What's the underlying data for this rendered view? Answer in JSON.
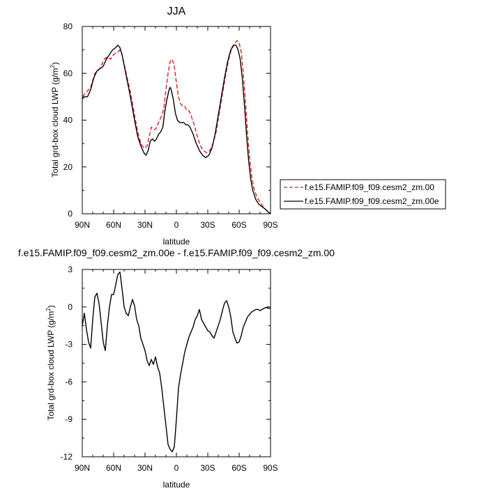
{
  "chart_data": [
    {
      "type": "line",
      "title": "JJA",
      "xlabel": "latitude",
      "ylabel": "Total grd-box cloud LWP (g/m",
      "ylabel_sup": "2",
      "ylabel_end": ")",
      "xlim": [
        90,
        -90
      ],
      "ylim": [
        0,
        80
      ],
      "xticks": [
        90,
        60,
        30,
        0,
        -30,
        -60,
        -90
      ],
      "xtick_labels": [
        "90N",
        "60N",
        "30N",
        "0",
        "30S",
        "60S",
        "90S"
      ],
      "yticks": [
        0,
        20,
        40,
        60,
        80
      ],
      "ytick_labels": [
        "0",
        "20",
        "40",
        "60",
        "80"
      ],
      "legend_position": "right",
      "series": [
        {
          "name": "f.e15.FAMIP.f09_f09.cesm2_zm.00",
          "color": "#e41a1c",
          "dash": "dashed",
          "points": [
            [
              90,
              50
            ],
            [
              86,
              52
            ],
            [
              82,
              54
            ],
            [
              78,
              60
            ],
            [
              75,
              61
            ],
            [
              72,
              63
            ],
            [
              69,
              66
            ],
            [
              66,
              67
            ],
            [
              63,
              66
            ],
            [
              60,
              68
            ],
            [
              56,
              69
            ],
            [
              54,
              70
            ],
            [
              52,
              68
            ],
            [
              48,
              60
            ],
            [
              44,
              52
            ],
            [
              40,
              42
            ],
            [
              37,
              35
            ],
            [
              34,
              30
            ],
            [
              31,
              28
            ],
            [
              28,
              29
            ],
            [
              26,
              33
            ],
            [
              24,
              37
            ],
            [
              22,
              36
            ],
            [
              20,
              36
            ],
            [
              18,
              38
            ],
            [
              16,
              40
            ],
            [
              14,
              42
            ],
            [
              12,
              45
            ],
            [
              10,
              53
            ],
            [
              8,
              60
            ],
            [
              6,
              65
            ],
            [
              4,
              66
            ],
            [
              2,
              63
            ],
            [
              0,
              56
            ],
            [
              -2,
              50
            ],
            [
              -4,
              47
            ],
            [
              -6,
              46
            ],
            [
              -8,
              46
            ],
            [
              -10,
              44
            ],
            [
              -12,
              44
            ],
            [
              -14,
              42
            ],
            [
              -17,
              38
            ],
            [
              -20,
              33
            ],
            [
              -23,
              29
            ],
            [
              -26,
              27
            ],
            [
              -29,
              26
            ],
            [
              -32,
              27
            ],
            [
              -35,
              30
            ],
            [
              -38,
              35
            ],
            [
              -41,
              43
            ],
            [
              -44,
              51
            ],
            [
              -47,
              59
            ],
            [
              -50,
              66
            ],
            [
              -53,
              71
            ],
            [
              -56,
              73
            ],
            [
              -58,
              74
            ],
            [
              -60,
              73
            ],
            [
              -62,
              69
            ],
            [
              -64,
              60
            ],
            [
              -66,
              48
            ],
            [
              -68,
              35
            ],
            [
              -70,
              24
            ],
            [
              -72,
              16
            ],
            [
              -74,
              11
            ],
            [
              -77,
              7
            ],
            [
              -80,
              5
            ],
            [
              -83,
              3
            ],
            [
              -86,
              1.5
            ],
            [
              -90,
              0.3
            ]
          ]
        },
        {
          "name": "f.e15.FAMIP.f09_f09.cesm2_zm.00e",
          "color": "#000000",
          "dash": "solid",
          "points": [
            [
              90,
              49
            ],
            [
              88,
              50
            ],
            [
              85,
              50
            ],
            [
              82,
              53
            ],
            [
              79,
              58
            ],
            [
              76,
              61
            ],
            [
              73,
              62
            ],
            [
              70,
              63
            ],
            [
              67,
              66
            ],
            [
              64,
              68
            ],
            [
              61,
              70
            ],
            [
              58,
              71
            ],
            [
              56,
              72
            ],
            [
              54,
              71
            ],
            [
              52,
              68
            ],
            [
              48,
              59
            ],
            [
              44,
              50
            ],
            [
              40,
              40
            ],
            [
              37,
              33
            ],
            [
              34,
              29
            ],
            [
              31,
              26
            ],
            [
              29,
              25
            ],
            [
              27,
              27
            ],
            [
              25,
              31
            ],
            [
              23,
              32
            ],
            [
              21,
              31
            ],
            [
              19,
              32
            ],
            [
              17,
              34
            ],
            [
              15,
              35
            ],
            [
              13,
              37
            ],
            [
              11,
              44
            ],
            [
              9,
              49
            ],
            [
              7,
              53
            ],
            [
              6,
              54
            ],
            [
              5,
              53
            ],
            [
              3,
              49
            ],
            [
              1,
              43
            ],
            [
              -1,
              40
            ],
            [
              -3,
              39
            ],
            [
              -5,
              39
            ],
            [
              -7,
              39
            ],
            [
              -9,
              38
            ],
            [
              -11,
              38
            ],
            [
              -13,
              37
            ],
            [
              -16,
              34
            ],
            [
              -19,
              30
            ],
            [
              -22,
              27
            ],
            [
              -25,
              25
            ],
            [
              -28,
              24
            ],
            [
              -31,
              25
            ],
            [
              -34,
              28
            ],
            [
              -37,
              34
            ],
            [
              -40,
              42
            ],
            [
              -43,
              50
            ],
            [
              -46,
              58
            ],
            [
              -49,
              65
            ],
            [
              -52,
              70
            ],
            [
              -55,
              72
            ],
            [
              -57,
              72
            ],
            [
              -59,
              70
            ],
            [
              -61,
              66
            ],
            [
              -63,
              58
            ],
            [
              -65,
              47
            ],
            [
              -67,
              34
            ],
            [
              -69,
              23
            ],
            [
              -71,
              15
            ],
            [
              -73,
              10
            ],
            [
              -76,
              6
            ],
            [
              -79,
              4
            ],
            [
              -82,
              3
            ],
            [
              -85,
              2
            ],
            [
              -88,
              0.6
            ],
            [
              -90,
              0.2
            ]
          ]
        }
      ]
    },
    {
      "type": "line",
      "title": "f.e15.FAMIP.f09_f09.cesm2_zm.00e - f.e15.FAMIP.f09_f09.cesm2_zm.00",
      "xlabel": "latitude",
      "ylabel": "Total grd-box cloud LWP (g/m",
      "ylabel_sup": "2",
      "ylabel_end": ")",
      "xlim": [
        90,
        -90
      ],
      "ylim": [
        -12,
        3
      ],
      "xticks": [
        90,
        60,
        30,
        0,
        -30,
        -60,
        -90
      ],
      "xtick_labels": [
        "90N",
        "60N",
        "30N",
        "0",
        "30S",
        "60S",
        "90S"
      ],
      "yticks": [
        -12,
        -9,
        -6,
        -3,
        0,
        3
      ],
      "ytick_labels": [
        "-12",
        "-9",
        "-6",
        "-3",
        "0",
        "3"
      ],
      "series": [
        {
          "color": "#000000",
          "dash": "solid",
          "points": [
            [
              90,
              -1.5
            ],
            [
              88,
              -0.5
            ],
            [
              86,
              -1.8
            ],
            [
              84,
              -2.8
            ],
            [
              82,
              -3.3
            ],
            [
              80,
              -1
            ],
            [
              78,
              0.8
            ],
            [
              76,
              1.1
            ],
            [
              74,
              0.3
            ],
            [
              72,
              -1.2
            ],
            [
              70,
              -2.8
            ],
            [
              68,
              -3.5
            ],
            [
              66,
              -1.5
            ],
            [
              64,
              0
            ],
            [
              62,
              1
            ],
            [
              60,
              1
            ],
            [
              58,
              1.8
            ],
            [
              56,
              2.6
            ],
            [
              54,
              2.8
            ],
            [
              52,
              1.5
            ],
            [
              50,
              0
            ],
            [
              48,
              -0.5
            ],
            [
              46,
              -0.7
            ],
            [
              44,
              0
            ],
            [
              42,
              0.6
            ],
            [
              40,
              0.1
            ],
            [
              38,
              -1
            ],
            [
              36,
              -1.5
            ],
            [
              34,
              -2.5
            ],
            [
              32,
              -3
            ],
            [
              30,
              -3.5
            ],
            [
              28,
              -4.3
            ],
            [
              26,
              -4.7
            ],
            [
              24,
              -4.2
            ],
            [
              22,
              -4.6
            ],
            [
              20,
              -4
            ],
            [
              18,
              -4.8
            ],
            [
              16,
              -5.3
            ],
            [
              14,
              -6.5
            ],
            [
              12,
              -8
            ],
            [
              10,
              -9.5
            ],
            [
              8,
              -11
            ],
            [
              6,
              -11.4
            ],
            [
              4,
              -11.6
            ],
            [
              2,
              -11.2
            ],
            [
              0,
              -9
            ],
            [
              -2,
              -6.5
            ],
            [
              -4,
              -5.4
            ],
            [
              -6,
              -4.5
            ],
            [
              -8,
              -3.6
            ],
            [
              -10,
              -3
            ],
            [
              -12,
              -2.4
            ],
            [
              -14,
              -2
            ],
            [
              -16,
              -1.6
            ],
            [
              -18,
              -1
            ],
            [
              -20,
              -0.7
            ],
            [
              -22,
              -0.2
            ],
            [
              -24,
              -1
            ],
            [
              -26,
              -1.3
            ],
            [
              -28,
              -1.6
            ],
            [
              -30,
              -1.9
            ],
            [
              -32,
              -2
            ],
            [
              -34,
              -2.3
            ],
            [
              -36,
              -2.5
            ],
            [
              -38,
              -2.0
            ],
            [
              -40,
              -1.5
            ],
            [
              -42,
              -1.0
            ],
            [
              -44,
              -0.3
            ],
            [
              -46,
              0.3
            ],
            [
              -48,
              0.5
            ],
            [
              -50,
              0
            ],
            [
              -52,
              -0.8
            ],
            [
              -54,
              -2.0
            ],
            [
              -56,
              -2.5
            ],
            [
              -58,
              -2.9
            ],
            [
              -60,
              -2.8
            ],
            [
              -62,
              -2.3
            ],
            [
              -64,
              -1.6
            ],
            [
              -66,
              -1.2
            ],
            [
              -68,
              -0.8
            ],
            [
              -70,
              -0.6
            ],
            [
              -72,
              -0.4
            ],
            [
              -74,
              -0.3
            ],
            [
              -76,
              -0.2
            ],
            [
              -78,
              -0.2
            ],
            [
              -80,
              -0.3
            ],
            [
              -82,
              -0.2
            ],
            [
              -84,
              -0.1
            ],
            [
              -86,
              -0.05
            ],
            [
              -88,
              -0.1
            ],
            [
              -90,
              -0.1
            ]
          ]
        }
      ]
    }
  ]
}
